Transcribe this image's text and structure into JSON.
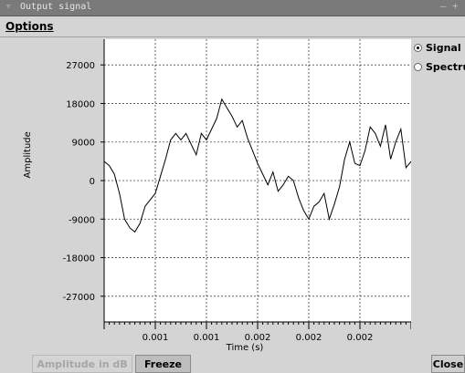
{
  "window": {
    "title": "Output signal"
  },
  "menu": {
    "options_label": "Options"
  },
  "modes": [
    {
      "label": "Signal",
      "selected": true
    },
    {
      "label": "Spectrum",
      "selected": false
    }
  ],
  "buttons": {
    "amplitude_label": "Amplitude in dB",
    "freeze_label": "Freeze",
    "close_label": "Close"
  },
  "chart_data": {
    "type": "line",
    "xlabel": "Time (s)",
    "ylabel": "Amplitude",
    "ylim": [
      -33000,
      33000
    ],
    "xlim": [
      0,
      0.003
    ],
    "yticks": [
      27000,
      18000,
      9000,
      0,
      -9000,
      -18000,
      -27000
    ],
    "xticks": [
      0.0005,
      0.001,
      0.0015,
      0.002,
      0.0025
    ],
    "xtick_labels": [
      "0.001",
      "0.001",
      "0.002",
      "0.002",
      "0.002"
    ],
    "grid": true,
    "series": [
      {
        "color": "#000000",
        "x": [
          0.0,
          5e-05,
          0.0001,
          0.00015,
          0.0002,
          0.00025,
          0.0003,
          0.00035,
          0.0004,
          0.00045,
          0.0005,
          0.00055,
          0.0006,
          0.00065,
          0.0007,
          0.00075,
          0.0008,
          0.00085,
          0.0009,
          0.00095,
          0.001,
          0.00105,
          0.0011,
          0.00115,
          0.0012,
          0.00125,
          0.0013,
          0.00135,
          0.0014,
          0.00145,
          0.0015,
          0.00155,
          0.0016,
          0.00165,
          0.0017,
          0.00175,
          0.0018,
          0.00185,
          0.0019,
          0.00195,
          0.002,
          0.00205,
          0.0021,
          0.00215,
          0.0022,
          0.00225,
          0.0023,
          0.00235,
          0.0024,
          0.00245,
          0.0025,
          0.00255,
          0.0026,
          0.00265,
          0.0027,
          0.00275,
          0.0028,
          0.00285,
          0.0029,
          0.00295,
          0.003
        ],
        "y": [
          4500,
          3500,
          1500,
          -3000,
          -9000,
          -11000,
          -12000,
          -10000,
          -6000,
          -4500,
          -3000,
          1000,
          5000,
          9500,
          11000,
          9500,
          11000,
          8500,
          6000,
          11000,
          9500,
          12000,
          14500,
          19000,
          17000,
          15000,
          12500,
          14000,
          10000,
          7000,
          4000,
          1500,
          -1000,
          2000,
          -2500,
          -1000,
          1000,
          0,
          -4000,
          -7000,
          -9000,
          -6000,
          -5000,
          -3000,
          -9000,
          -5500,
          -1500,
          5000,
          9000,
          4000,
          3500,
          7000,
          12500,
          11000,
          8000,
          13000,
          5000,
          9000,
          12000,
          3000,
          4500
        ]
      }
    ]
  }
}
